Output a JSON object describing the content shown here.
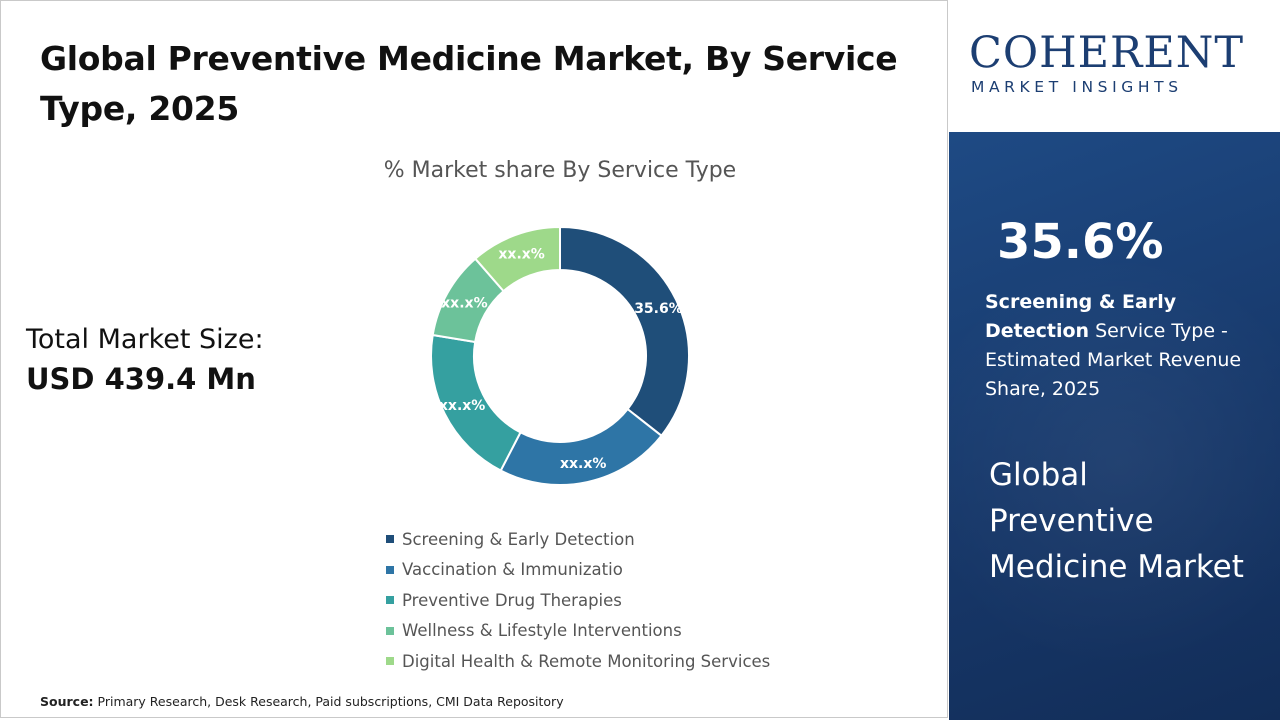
{
  "title": "Global Preventive Medicine Market, By Service Type, 2025",
  "total_market": {
    "label": "Total Market Size:",
    "value": "USD 439.4 Mn"
  },
  "source": {
    "label": "Source:",
    "text": "Primary Research, Desk Research, Paid subscriptions, CMI Data Repository"
  },
  "logo": {
    "word": "COHERENT",
    "sub": "MARKET INSIGHTS"
  },
  "side": {
    "big_pct": "35.6%",
    "desc_bold": "Screening & Early Detection",
    "desc_rest": " Service Type - Estimated Market Revenue Share, 2025",
    "market_name": "Global Preventive Medicine Market"
  },
  "colors": {
    "panel": "#17386a",
    "logo": "#1c3e72"
  },
  "chart_data": {
    "type": "pie",
    "donut": true,
    "title": "% Market share By Service Type",
    "categories": [
      "Screening & Early Detection",
      "Vaccination & Immunizatio",
      "Preventive Drug Therapies",
      "Wellness & Lifestyle Interventions",
      "Digital Health & Remote Monitoring Services"
    ],
    "values": [
      35.6,
      22.0,
      20.0,
      11.0,
      11.4
    ],
    "data_labels": [
      "35.6%",
      "xx.x%",
      "xx.x%",
      "xx.x%",
      "xx.x%"
    ],
    "colors": [
      "#1f4e79",
      "#2e75a6",
      "#35a0a0",
      "#6cc29a",
      "#9ed98a"
    ],
    "legend_position": "bottom"
  }
}
